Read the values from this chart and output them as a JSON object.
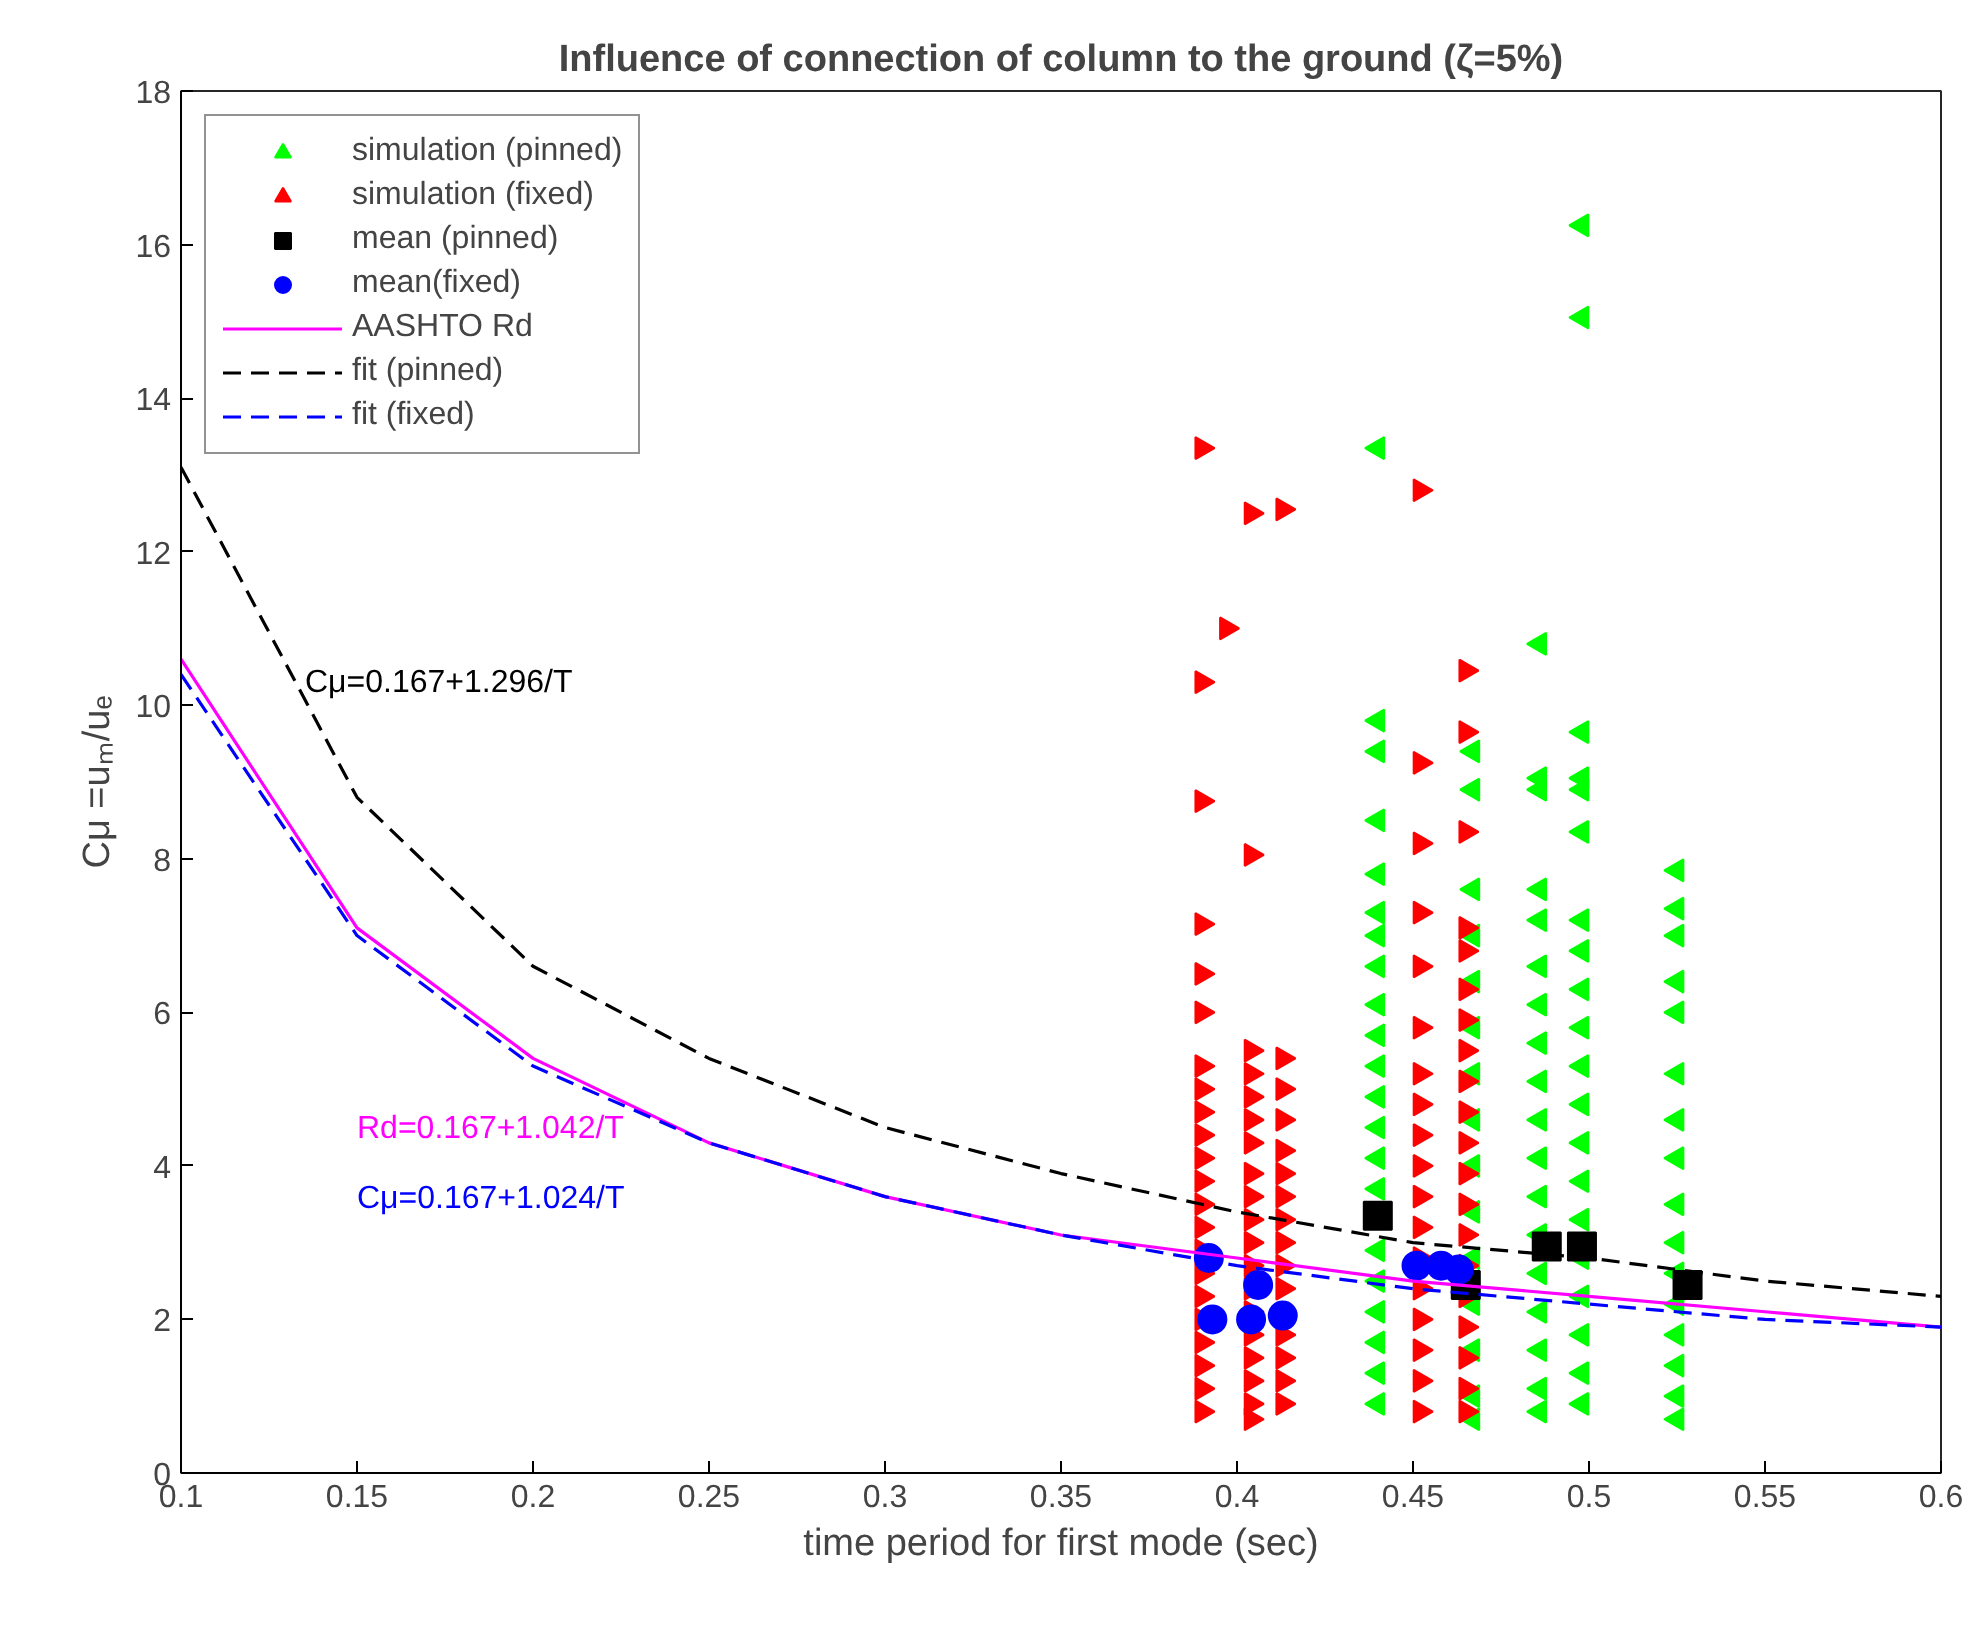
{
  "chart_data": {
    "type": "scatter",
    "title": "Influence of connection of column to the ground (ζ=5%)",
    "xlabel": "time period for first mode (sec)",
    "ylabel": "Cμ =uₘ/uₑ",
    "xlim": [
      0.1,
      0.6
    ],
    "ylim": [
      0,
      18
    ],
    "xticks": [
      0.1,
      0.15,
      0.2,
      0.25,
      0.3,
      0.35,
      0.4,
      0.45,
      0.5,
      0.55,
      0.6
    ],
    "yticks": [
      0,
      2,
      4,
      6,
      8,
      10,
      12,
      14,
      16,
      18
    ],
    "grid": false,
    "legend": "top left",
    "annotations": [
      "Cμ=0.167+1.296/T",
      "Rd=0.167+1.042/T",
      "Cμ=0.167+1.024/T"
    ],
    "series": [
      {
        "name": "simulation (pinned)",
        "marker": "triangle",
        "color": "#00ff00",
        "x": [
          0.44,
          0.44,
          0.44,
          0.44,
          0.44,
          0.44,
          0.44,
          0.44,
          0.44,
          0.44,
          0.44,
          0.44,
          0.44,
          0.44,
          0.44,
          0.44,
          0.44,
          0.44,
          0.44,
          0.44,
          0.44,
          0.467,
          0.467,
          0.467,
          0.467,
          0.467,
          0.467,
          0.467,
          0.467,
          0.467,
          0.467,
          0.467,
          0.467,
          0.467,
          0.467,
          0.467,
          0.486,
          0.486,
          0.486,
          0.486,
          0.486,
          0.486,
          0.486,
          0.486,
          0.486,
          0.486,
          0.486,
          0.486,
          0.486,
          0.486,
          0.486,
          0.486,
          0.486,
          0.486,
          0.498,
          0.498,
          0.498,
          0.498,
          0.498,
          0.498,
          0.498,
          0.498,
          0.498,
          0.498,
          0.498,
          0.498,
          0.498,
          0.498,
          0.498,
          0.498,
          0.498,
          0.498,
          0.498,
          0.498,
          0.525,
          0.525,
          0.525,
          0.525,
          0.525,
          0.525,
          0.525,
          0.525,
          0.525,
          0.525,
          0.525,
          0.525,
          0.525,
          0.525,
          0.525,
          0.525
        ],
        "values": [
          13.35,
          9.8,
          9.4,
          8.5,
          7.8,
          7.3,
          7.0,
          6.6,
          6.1,
          5.7,
          5.3,
          4.9,
          4.5,
          4.1,
          3.7,
          2.9,
          2.5,
          2.1,
          1.7,
          1.3,
          0.9,
          9.4,
          8.9,
          7.6,
          7.0,
          6.4,
          5.8,
          5.2,
          4.6,
          4.0,
          3.4,
          2.8,
          2.2,
          1.6,
          1.0,
          0.7,
          10.8,
          9.05,
          8.9,
          7.6,
          7.2,
          6.6,
          6.1,
          5.6,
          5.1,
          4.6,
          4.1,
          3.6,
          3.1,
          2.6,
          2.1,
          1.6,
          1.1,
          0.8,
          16.25,
          15.05,
          9.65,
          9.05,
          8.9,
          8.35,
          7.2,
          6.8,
          6.3,
          5.8,
          5.3,
          4.8,
          4.3,
          3.8,
          3.3,
          2.8,
          2.3,
          1.8,
          1.3,
          0.9,
          7.85,
          7.35,
          7.0,
          6.4,
          6.0,
          5.2,
          4.6,
          4.1,
          3.5,
          3.0,
          2.6,
          2.2,
          1.8,
          1.4,
          1.0,
          0.7
        ]
      },
      {
        "name": "simulation (fixed)",
        "marker": "triangle",
        "color": "#ff0000",
        "x": [
          0.39,
          0.39,
          0.39,
          0.39,
          0.39,
          0.39,
          0.39,
          0.39,
          0.39,
          0.39,
          0.39,
          0.39,
          0.39,
          0.39,
          0.39,
          0.39,
          0.39,
          0.39,
          0.39,
          0.39,
          0.39,
          0.39,
          0.397,
          0.404,
          0.404,
          0.404,
          0.404,
          0.404,
          0.404,
          0.404,
          0.404,
          0.404,
          0.404,
          0.404,
          0.404,
          0.404,
          0.404,
          0.404,
          0.404,
          0.404,
          0.404,
          0.404,
          0.413,
          0.413,
          0.413,
          0.413,
          0.413,
          0.413,
          0.413,
          0.413,
          0.413,
          0.413,
          0.413,
          0.413,
          0.413,
          0.413,
          0.413,
          0.452,
          0.452,
          0.452,
          0.452,
          0.452,
          0.452,
          0.452,
          0.452,
          0.452,
          0.452,
          0.452,
          0.452,
          0.452,
          0.452,
          0.452,
          0.452,
          0.452,
          0.452,
          0.465,
          0.465,
          0.465,
          0.465,
          0.465,
          0.465,
          0.465,
          0.465,
          0.465,
          0.465,
          0.465,
          0.465,
          0.465,
          0.465,
          0.465,
          0.465,
          0.465,
          0.465,
          0.465,
          0.465
        ],
        "values": [
          13.35,
          10.3,
          8.75,
          7.15,
          6.5,
          6.0,
          5.3,
          5.0,
          4.7,
          4.4,
          4.1,
          3.8,
          3.5,
          3.2,
          2.9,
          2.6,
          2.3,
          2.0,
          1.7,
          1.4,
          1.1,
          0.8,
          11.0,
          12.5,
          8.05,
          5.5,
          5.2,
          4.9,
          4.6,
          4.3,
          3.9,
          3.6,
          3.3,
          3.0,
          2.7,
          2.4,
          2.1,
          1.8,
          1.5,
          1.2,
          0.9,
          0.7,
          12.55,
          5.4,
          5.0,
          4.6,
          4.2,
          3.9,
          3.6,
          3.3,
          3.0,
          2.7,
          2.4,
          1.8,
          1.5,
          1.2,
          0.9,
          12.8,
          9.25,
          8.2,
          7.3,
          6.6,
          5.8,
          5.2,
          4.8,
          4.4,
          4.0,
          3.6,
          3.2,
          2.8,
          2.4,
          2.0,
          1.6,
          1.2,
          0.8,
          10.45,
          9.65,
          8.35,
          7.1,
          6.8,
          6.3,
          5.9,
          5.5,
          5.1,
          4.7,
          4.3,
          3.9,
          3.5,
          3.1,
          2.7,
          2.3,
          1.9,
          1.5,
          1.1,
          0.8
        ]
      },
      {
        "name": "mean (pinned)",
        "marker": "square",
        "color": "#000000",
        "x": [
          0.44,
          0.465,
          0.488,
          0.498,
          0.528
        ],
        "values": [
          3.35,
          2.45,
          2.95,
          2.95,
          2.45
        ]
      },
      {
        "name": "mean(fixed)",
        "marker": "circle",
        "color": "#0000ff",
        "x": [
          0.392,
          0.393,
          0.404,
          0.406,
          0.413,
          0.451,
          0.458,
          0.463
        ],
        "values": [
          2.8,
          2.0,
          2.0,
          2.45,
          2.05,
          2.7,
          2.7,
          2.65
        ]
      },
      {
        "name": "AASHTO Rd",
        "type": "line",
        "marker": "none",
        "line_style": "solid",
        "color": "#ff00ff",
        "x": [
          0.1,
          0.15,
          0.2,
          0.25,
          0.3,
          0.35,
          0.4,
          0.45,
          0.5,
          0.55,
          0.6
        ],
        "values": [
          10.6,
          7.1,
          5.4,
          4.3,
          3.6,
          3.1,
          2.8,
          2.5,
          2.3,
          2.1,
          1.9
        ]
      },
      {
        "name": "fit (pinned)",
        "type": "line",
        "marker": "none",
        "line_style": "dashed",
        "color": "#000000",
        "x": [
          0.1,
          0.15,
          0.2,
          0.25,
          0.3,
          0.35,
          0.4,
          0.45,
          0.5,
          0.55,
          0.6
        ],
        "values": [
          13.1,
          8.8,
          6.6,
          5.4,
          4.5,
          3.9,
          3.4,
          3.0,
          2.8,
          2.5,
          2.3
        ]
      },
      {
        "name": "fit (fixed)",
        "type": "line",
        "marker": "none",
        "line_style": "dashed",
        "color": "#0000ff",
        "x": [
          0.1,
          0.15,
          0.2,
          0.25,
          0.3,
          0.35,
          0.4,
          0.45,
          0.5,
          0.55,
          0.6
        ],
        "values": [
          10.4,
          7.0,
          5.3,
          4.3,
          3.6,
          3.1,
          2.7,
          2.4,
          2.2,
          2.0,
          1.9
        ]
      }
    ]
  }
}
